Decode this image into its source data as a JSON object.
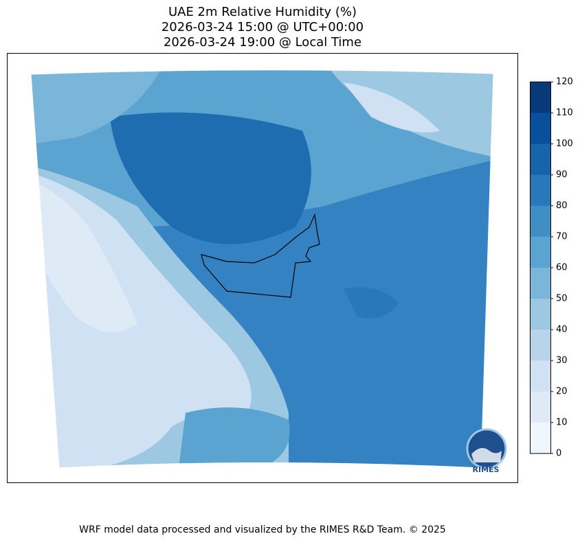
{
  "header": {
    "title_lines": [
      "UAE 2m Relative Humidity (%)",
      "2026-03-24 15:00 @ UTC+00:00",
      "2026-03-24 19:00 @ Local Time"
    ]
  },
  "colorbar": {
    "lim": [
      0,
      120
    ],
    "ticks": [
      0,
      10,
      20,
      30,
      40,
      50,
      60,
      70,
      80,
      90,
      100,
      110,
      120
    ],
    "colors": [
      "#f0f6fd",
      "#deebf7",
      "#cfe1f2",
      "#b7d4ea",
      "#9cc9e1",
      "#7ab6d9",
      "#5ba3d0",
      "#3f8fc5",
      "#2879b9",
      "#1764ab",
      "#08509b",
      "#083a7a"
    ]
  },
  "logo": {
    "label": "RIMES"
  },
  "footer": {
    "text": "WRF model data processed and visualized by the RIMES R&D Team. © 2025"
  }
}
